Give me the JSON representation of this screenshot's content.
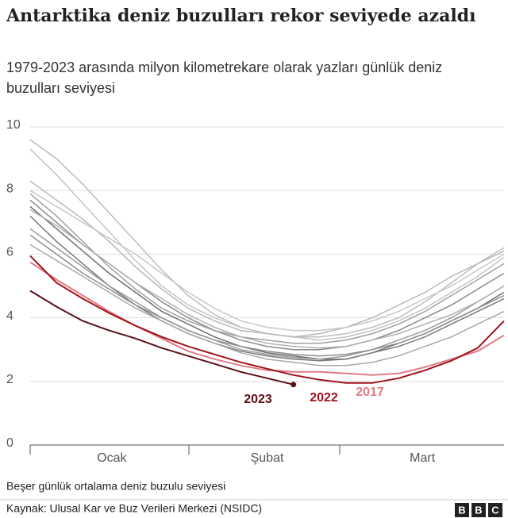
{
  "chart_data": {
    "type": "line",
    "title": "Antarktika deniz buzulları rekor seviyede azaldı",
    "subtitle": "1979-2023 arasında milyon kilometrekare olarak yazları günlük deniz buzulları seviyesi",
    "note": "Beşer günlük ortalama deniz buzulu seviyesi",
    "source": "Kaynak: Ulusal Kar ve Buz Verileri Merkezi (NSIDC)",
    "logo": "BBC",
    "x": [
      0,
      5,
      10,
      15,
      20,
      25,
      30,
      35,
      40,
      45,
      50,
      55,
      60,
      65,
      70,
      75,
      80,
      85,
      90
    ],
    "xlim": [
      0,
      90
    ],
    "xticks": [
      {
        "value": 15.5,
        "label": "Ocak"
      },
      {
        "value": 45,
        "label": "Şubat"
      },
      {
        "value": 74.5,
        "label": "Mart"
      }
    ],
    "ylim": [
      0,
      10
    ],
    "yticks": [
      0,
      2,
      4,
      6,
      8,
      10
    ],
    "grid": true,
    "series": [
      {
        "color": "#bdbdbd",
        "values": [
          9.6,
          9.0,
          8.2,
          7.3,
          6.4,
          5.5,
          4.7,
          4.1,
          3.7,
          3.5,
          3.4,
          3.4,
          3.5,
          3.7,
          4.0,
          4.5,
          5.1,
          5.7,
          6.2
        ]
      },
      {
        "color": "#c4c4c4",
        "values": [
          9.3,
          8.5,
          7.6,
          6.7,
          5.8,
          5.0,
          4.4,
          4.0,
          3.7,
          3.5,
          3.4,
          3.3,
          3.4,
          3.6,
          3.9,
          4.3,
          4.8,
          5.3,
          5.9
        ]
      },
      {
        "color": "#b8b8b8",
        "values": [
          8.3,
          7.7,
          7.1,
          6.4,
          5.6,
          4.9,
          4.3,
          3.9,
          3.6,
          3.5,
          3.4,
          3.5,
          3.7,
          4.0,
          4.4,
          4.8,
          5.3,
          5.7,
          6.1
        ]
      },
      {
        "color": "#8a8a8a",
        "values": [
          7.7,
          7.0,
          6.3,
          5.7,
          5.1,
          4.5,
          4.0,
          3.6,
          3.3,
          3.1,
          3.0,
          3.0,
          3.1,
          3.3,
          3.6,
          4.0,
          4.4,
          4.9,
          5.4
        ]
      },
      {
        "color": "#6e6e6e",
        "values": [
          7.5,
          6.8,
          6.1,
          5.4,
          4.8,
          4.2,
          3.8,
          3.4,
          3.1,
          2.9,
          2.8,
          2.7,
          2.7,
          2.9,
          3.2,
          3.5,
          3.9,
          4.3,
          4.8
        ]
      },
      {
        "color": "#7a7a7a",
        "values": [
          7.2,
          6.4,
          5.7,
          5.0,
          4.4,
          3.9,
          3.5,
          3.2,
          2.95,
          2.8,
          2.7,
          2.65,
          2.7,
          2.9,
          3.1,
          3.4,
          3.8,
          4.2,
          4.6
        ]
      },
      {
        "color": "#9a9a9a",
        "values": [
          6.8,
          6.2,
          5.6,
          5.0,
          4.5,
          4.0,
          3.6,
          3.3,
          3.0,
          2.85,
          2.75,
          2.7,
          2.8,
          3.0,
          3.3,
          3.6,
          4.0,
          4.5,
          5.0
        ]
      },
      {
        "color": "#a8a8a8",
        "values": [
          6.3,
          5.8,
          5.3,
          4.8,
          4.3,
          3.9,
          3.5,
          3.2,
          2.9,
          2.7,
          2.6,
          2.5,
          2.5,
          2.6,
          2.8,
          3.1,
          3.4,
          3.8,
          4.2
        ]
      },
      {
        "color": "#c8c8c8",
        "values": [
          8.0,
          7.5,
          7.0,
          6.5,
          6.0,
          5.4,
          4.8,
          4.3,
          3.9,
          3.7,
          3.6,
          3.6,
          3.7,
          3.9,
          4.2,
          4.6,
          5.0,
          5.5,
          6.0
        ]
      },
      {
        "color": "#a0a0a0",
        "values": [
          7.9,
          7.2,
          6.4,
          5.6,
          4.9,
          4.3,
          3.9,
          3.6,
          3.4,
          3.3,
          3.2,
          3.2,
          3.3,
          3.5,
          3.8,
          4.2,
          4.7,
          5.2,
          5.7
        ]
      },
      {
        "color": "#8f8f8f",
        "values": [
          6.6,
          6.0,
          5.4,
          4.9,
          4.4,
          4.0,
          3.6,
          3.3,
          3.1,
          2.95,
          2.85,
          2.8,
          2.85,
          3.0,
          3.2,
          3.5,
          3.9,
          4.3,
          4.7
        ]
      },
      {
        "color": "#b0b0b0",
        "values": [
          7.4,
          6.9,
          6.3,
          5.7,
          5.1,
          4.6,
          4.1,
          3.7,
          3.4,
          3.2,
          3.1,
          3.05,
          3.1,
          3.3,
          3.5,
          3.8,
          4.1,
          4.5,
          5.0
        ]
      },
      {
        "name": "2017",
        "color": "#e07b84",
        "values": [
          5.75,
          5.2,
          4.7,
          4.2,
          3.75,
          3.35,
          2.95,
          2.7,
          2.5,
          2.35,
          2.3,
          2.3,
          2.25,
          2.2,
          2.25,
          2.45,
          2.7,
          2.95,
          3.45
        ]
      },
      {
        "name": "2022",
        "color": "#a0121a",
        "values": [
          5.95,
          5.1,
          4.6,
          4.15,
          3.75,
          3.4,
          3.1,
          2.85,
          2.6,
          2.4,
          2.2,
          2.05,
          1.95,
          1.95,
          2.1,
          2.35,
          2.65,
          3.05,
          3.9
        ]
      },
      {
        "name": "2023",
        "color": "#5c1018",
        "values": [
          4.85,
          4.35,
          3.9,
          3.6,
          3.35,
          3.05,
          2.8,
          2.55,
          2.3,
          2.1,
          1.9,
          null,
          null,
          null,
          null,
          null,
          null,
          null,
          null
        ]
      }
    ]
  }
}
